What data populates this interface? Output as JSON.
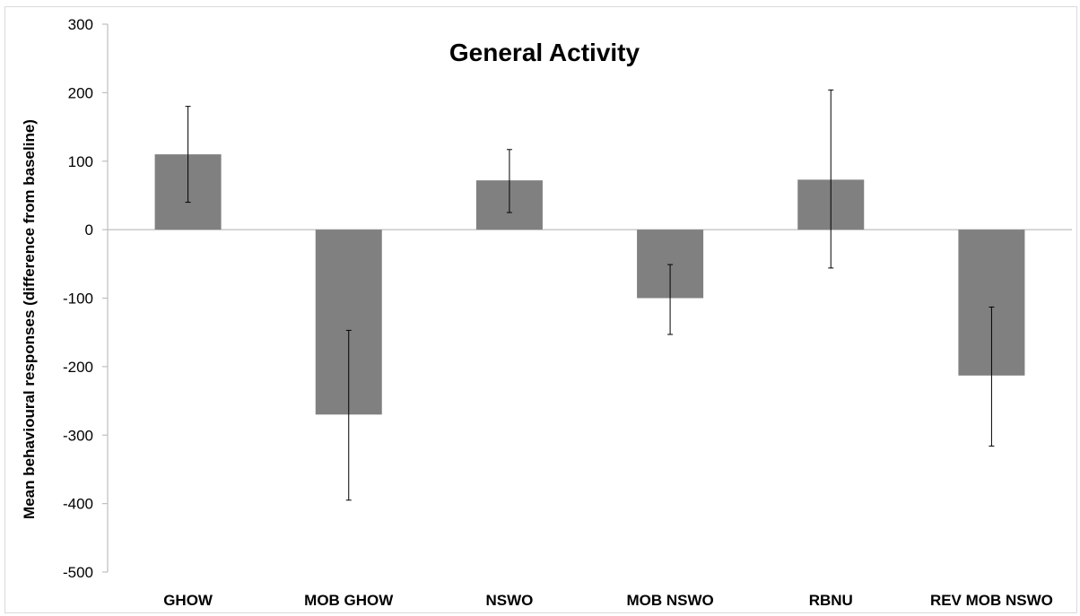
{
  "chart_data": {
    "type": "bar",
    "title": "General Activity",
    "xlabel": "",
    "ylabel": "Mean behavioural responses (difference from baseline)",
    "ylim": [
      -500,
      300
    ],
    "ytick_step": 100,
    "yticks": [
      "300",
      "200",
      "100",
      "0",
      "-100",
      "-200",
      "-300",
      "-400",
      "-500"
    ],
    "grid": false,
    "legend": "none",
    "categories": [
      "GHOW",
      "MOB GHOW",
      "NSWO",
      "MOB NSWO",
      "RBNU",
      "REV MOB NSWO"
    ],
    "series": [
      {
        "values": [
          110,
          -270,
          72,
          -100,
          73,
          -213
        ],
        "error_low": [
          40,
          -395,
          25,
          -153,
          -56,
          -316
        ],
        "error_high": [
          180,
          -147,
          117,
          -51,
          204,
          -113
        ]
      }
    ],
    "bar_color": "#808080"
  }
}
